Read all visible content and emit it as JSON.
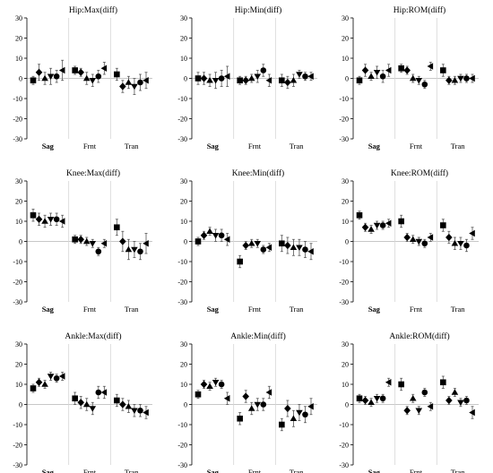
{
  "chart_data": [
    {
      "type": "scatter",
      "title": "Hip:Max(diff)",
      "ylim": [
        -30,
        30
      ],
      "yticks": [
        30,
        20,
        10,
        0,
        -10,
        -20,
        -30
      ],
      "groups": [
        "Sag",
        "Frnt",
        "Tran"
      ],
      "bold_group": "Sag",
      "markers": [
        "square",
        "diamond",
        "triangle",
        "triangle-down",
        "circle",
        "triangle-left",
        "triangle-right"
      ],
      "values": [
        [
          -1,
          3,
          0,
          1,
          1,
          4
        ],
        [
          4,
          3,
          0,
          -1,
          1,
          5
        ],
        [
          2,
          -4,
          -2,
          -4,
          -2,
          -1
        ]
      ],
      "errors": [
        [
          2,
          4,
          3,
          4,
          3,
          5
        ],
        [
          2,
          2,
          3,
          3,
          3,
          3
        ],
        [
          3,
          3,
          3,
          4,
          4,
          4
        ]
      ]
    },
    {
      "type": "scatter",
      "title": "Hip:Min(diff)",
      "ylim": [
        -30,
        30
      ],
      "yticks": [
        30,
        20,
        10,
        0,
        -10,
        -20,
        -30
      ],
      "groups": [
        "Sag",
        "Frnt",
        "Tran"
      ],
      "bold_group": "Sag",
      "markers": [
        "square",
        "diamond",
        "triangle",
        "triangle-down",
        "circle",
        "triangle-left",
        "triangle-right"
      ],
      "values": [
        [
          0,
          0,
          -1,
          -1,
          0,
          1
        ],
        [
          -1,
          -1,
          0,
          1,
          4,
          -1
        ],
        [
          -1,
          -2,
          -1,
          2,
          1,
          1
        ]
      ],
      "errors": [
        [
          3,
          3,
          3,
          4,
          4,
          5
        ],
        [
          2,
          2,
          2,
          3,
          3,
          3
        ],
        [
          3,
          3,
          3,
          2,
          2,
          2
        ]
      ]
    },
    {
      "type": "scatter",
      "title": "Hip:ROM(diff)",
      "ylim": [
        -30,
        30
      ],
      "yticks": [
        30,
        20,
        10,
        0,
        -10,
        -20,
        -30
      ],
      "groups": [
        "Sag",
        "Frnt",
        "Tran"
      ],
      "bold_group": "Sag",
      "markers": [
        "square",
        "diamond",
        "triangle",
        "triangle-down",
        "circle",
        "triangle-left",
        "triangle-right"
      ],
      "values": [
        [
          -1,
          4,
          1,
          3,
          1,
          4
        ],
        [
          5,
          4,
          0,
          -1,
          -3,
          6
        ],
        [
          4,
          -1,
          -1,
          0,
          0,
          0
        ]
      ],
      "errors": [
        [
          2,
          3,
          2,
          3,
          3,
          3
        ],
        [
          2,
          2,
          2,
          2,
          2,
          2
        ],
        [
          3,
          2,
          2,
          2,
          2,
          2
        ]
      ]
    },
    {
      "type": "scatter",
      "title": "Knee:Max(diff)",
      "ylim": [
        -30,
        30
      ],
      "yticks": [
        30,
        20,
        10,
        0,
        -10,
        -20,
        -30
      ],
      "groups": [
        "Sag",
        "Frnt",
        "Tran"
      ],
      "bold_group": "Sag",
      "markers": [
        "square",
        "diamond",
        "triangle",
        "triangle-down",
        "circle",
        "triangle-left",
        "triangle-right"
      ],
      "values": [
        [
          13,
          11,
          10,
          11,
          11,
          10
        ],
        [
          1,
          1,
          0,
          -1,
          -5,
          -1
        ],
        [
          7,
          0,
          -4,
          -4,
          -5,
          -1
        ]
      ],
      "errors": [
        [
          3,
          3,
          3,
          3,
          3,
          3
        ],
        [
          2,
          2,
          2,
          2,
          2,
          2
        ],
        [
          4,
          5,
          5,
          4,
          4,
          5
        ]
      ]
    },
    {
      "type": "scatter",
      "title": "Knee:Min(diff)",
      "ylim": [
        -30,
        30
      ],
      "yticks": [
        30,
        20,
        10,
        0,
        -10,
        -20,
        -30
      ],
      "groups": [
        "Sag",
        "Frnt",
        "Tran"
      ],
      "bold_group": "Sag",
      "markers": [
        "square",
        "diamond",
        "triangle",
        "triangle-down",
        "circle",
        "triangle-left",
        "triangle-right"
      ],
      "values": [
        [
          0,
          3,
          5,
          3,
          3,
          1
        ],
        [
          -10,
          -2,
          -1,
          -1,
          -4,
          -3
        ],
        [
          -1,
          -2,
          -3,
          -3,
          -4,
          -5
        ]
      ],
      "errors": [
        [
          2,
          2,
          2,
          3,
          3,
          3
        ],
        [
          3,
          2,
          2,
          2,
          2,
          2
        ],
        [
          4,
          4,
          4,
          4,
          4,
          4
        ]
      ]
    },
    {
      "type": "scatter",
      "title": "Knee:ROM(diff)",
      "ylim": [
        -30,
        30
      ],
      "yticks": [
        30,
        20,
        10,
        0,
        -10,
        -20,
        -30
      ],
      "groups": [
        "Sag",
        "Frnt",
        "Tran"
      ],
      "bold_group": "Sag",
      "markers": [
        "square",
        "diamond",
        "triangle",
        "triangle-down",
        "circle",
        "triangle-left",
        "triangle-right"
      ],
      "values": [
        [
          13,
          7,
          6,
          8,
          8,
          9
        ],
        [
          10,
          2,
          1,
          0,
          -1,
          2
        ],
        [
          8,
          2,
          -1,
          -1,
          -2,
          4
        ]
      ],
      "errors": [
        [
          2,
          2,
          2,
          2,
          2,
          2
        ],
        [
          3,
          2,
          2,
          2,
          2,
          2
        ],
        [
          3,
          3,
          3,
          3,
          3,
          3
        ]
      ]
    },
    {
      "type": "scatter",
      "title": "Ankle:Max(diff)",
      "ylim": [
        -30,
        30
      ],
      "yticks": [
        30,
        20,
        10,
        0,
        -10,
        -20,
        -30
      ],
      "groups": [
        "Sag",
        "Frnt",
        "Tran"
      ],
      "bold_group": "Sag",
      "markers": [
        "square",
        "diamond",
        "triangle",
        "triangle-down",
        "circle",
        "triangle-left",
        "triangle-right"
      ],
      "values": [
        [
          8,
          11,
          10,
          14,
          13,
          14
        ],
        [
          3,
          1,
          0,
          -2,
          6,
          6
        ],
        [
          2,
          0,
          -1,
          -3,
          -3,
          -4
        ]
      ],
      "errors": [
        [
          2,
          2,
          2,
          2,
          2,
          2
        ],
        [
          3,
          3,
          3,
          3,
          3,
          3
        ],
        [
          3,
          3,
          3,
          3,
          3,
          3
        ]
      ]
    },
    {
      "type": "scatter",
      "title": "Ankle:Min(diff)",
      "ylim": [
        -30,
        30
      ],
      "yticks": [
        30,
        20,
        10,
        0,
        -10,
        -20,
        -30
      ],
      "groups": [
        "Sag",
        "Frnt",
        "Tran"
      ],
      "bold_group": "Sag",
      "markers": [
        "square",
        "diamond",
        "triangle",
        "triangle-down",
        "circle",
        "triangle-left",
        "triangle-right"
      ],
      "values": [
        [
          5,
          10,
          9,
          11,
          10,
          3
        ],
        [
          -7,
          4,
          -2,
          0,
          0,
          6
        ],
        [
          -10,
          -2,
          -7,
          -4,
          -5,
          -1
        ]
      ],
      "errors": [
        [
          2,
          2,
          2,
          2,
          2,
          3
        ],
        [
          3,
          3,
          3,
          3,
          3,
          3
        ],
        [
          3,
          4,
          4,
          4,
          4,
          4
        ]
      ]
    },
    {
      "type": "scatter",
      "title": "Ankle:ROM(diff)",
      "ylim": [
        -30,
        30
      ],
      "yticks": [
        30,
        20,
        10,
        0,
        -10,
        -20,
        -30
      ],
      "groups": [
        "Sag",
        "Frnt",
        "Tran"
      ],
      "bold_group": "Sag",
      "markers": [
        "square",
        "diamond",
        "triangle",
        "triangle-down",
        "circle",
        "triangle-left",
        "triangle-right"
      ],
      "values": [
        [
          3,
          2,
          1,
          3,
          3,
          11
        ],
        [
          10,
          -3,
          3,
          -3,
          6,
          -1
        ],
        [
          11,
          2,
          6,
          1,
          2,
          -4
        ]
      ],
      "errors": [
        [
          2,
          2,
          2,
          2,
          2,
          2
        ],
        [
          3,
          2,
          2,
          2,
          2,
          2
        ],
        [
          3,
          2,
          2,
          2,
          2,
          3
        ]
      ]
    }
  ]
}
